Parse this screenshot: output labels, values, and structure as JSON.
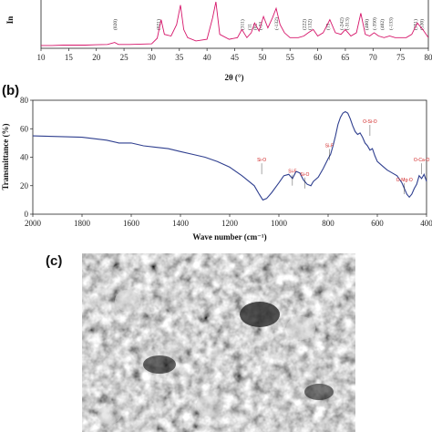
{
  "chart_data": [
    {
      "panel": "(a)",
      "type": "line",
      "xlabel": "2θ (°)",
      "ylabel": "In",
      "xlim": [
        10,
        80
      ],
      "x_ticks": [
        "10",
        "15",
        "20",
        "25",
        "30",
        "35",
        "40",
        "45",
        "50",
        "55",
        "60",
        "65",
        "70",
        "75",
        "80"
      ],
      "color": "#d6156a",
      "series": [
        {
          "x": [
            10,
            12,
            14,
            16,
            18,
            20,
            22,
            23.3,
            24,
            26,
            28,
            30,
            31,
            31.7,
            32.3,
            33.5,
            34.5,
            35.2,
            35.8,
            36.5,
            38,
            40,
            41,
            41.6,
            42.3,
            44,
            45.5,
            46.3,
            47.2,
            48,
            48.6,
            49.4,
            50.2,
            51,
            51.8,
            52.5,
            53.2,
            54,
            55,
            56.5,
            57.5,
            58.3,
            59.2,
            60,
            61,
            62.2,
            63.2,
            64.2,
            65,
            66,
            67,
            67.8,
            68.6,
            69.4,
            70.2,
            71,
            72,
            73,
            74,
            75,
            76,
            77,
            78,
            79,
            80
          ],
          "y": [
            0.06,
            0.06,
            0.07,
            0.07,
            0.07,
            0.08,
            0.09,
            0.15,
            0.09,
            0.09,
            0.1,
            0.11,
            0.28,
            0.85,
            0.4,
            0.35,
            0.7,
            1.3,
            0.55,
            0.3,
            0.2,
            0.25,
            0.9,
            1.4,
            0.4,
            0.25,
            0.3,
            0.55,
            0.3,
            0.45,
            0.75,
            0.5,
            0.95,
            0.6,
            0.9,
            1.2,
            0.7,
            0.45,
            0.3,
            0.3,
            0.35,
            0.45,
            0.55,
            0.35,
            0.45,
            0.85,
            0.45,
            0.4,
            0.55,
            0.35,
            0.45,
            1.05,
            0.4,
            0.35,
            0.45,
            0.35,
            0.3,
            0.35,
            0.3,
            0.3,
            0.3,
            0.4,
            0.75,
            0.55,
            0.3
          ]
        }
      ],
      "peak_labels": [
        {
          "x": 23.3,
          "label": "(020)"
        },
        {
          "x": 31.2,
          "label": "(021)"
        },
        {
          "x": 46.3,
          "label": "(311)"
        },
        {
          "x": 47.6,
          "label": "(11"
        },
        {
          "x": 48.6,
          "label": "(02"
        },
        {
          "x": 49.6,
          "label": "(-33"
        },
        {
          "x": 52.5,
          "label": "(-132)"
        },
        {
          "x": 57.5,
          "label": "(222)"
        },
        {
          "x": 58.5,
          "label": "(132)"
        },
        {
          "x": 61.8,
          "label": "(15"
        },
        {
          "x": 64.3,
          "label": "(-242)"
        },
        {
          "x": 65.3,
          "label": "(-313)"
        },
        {
          "x": 68.8,
          "label": "(400)"
        },
        {
          "x": 70.2,
          "label": "(-350)"
        },
        {
          "x": 71.6,
          "label": "(402)"
        },
        {
          "x": 73.2,
          "label": "(-133)"
        },
        {
          "x": 77.6,
          "label": "(351)"
        },
        {
          "x": 78.8,
          "label": "(530)"
        }
      ]
    },
    {
      "panel": "(b)",
      "type": "line",
      "xlabel": "Wave number (cm⁻¹)",
      "ylabel": "Transmittance (%)",
      "xlim": [
        2000,
        400
      ],
      "ylim": [
        0,
        80
      ],
      "x_ticks": [
        "2000",
        "1800",
        "1600",
        "1400",
        "1200",
        "1000",
        "800",
        "600",
        "400"
      ],
      "y_ticks": [
        "0",
        "20",
        "40",
        "60",
        "80"
      ],
      "color": "#2f3f8f",
      "series": [
        {
          "x": [
            2000,
            1900,
            1800,
            1700,
            1650,
            1600,
            1550,
            1500,
            1450,
            1400,
            1350,
            1300,
            1250,
            1200,
            1150,
            1100,
            1080,
            1065,
            1050,
            1030,
            1000,
            980,
            960,
            945,
            930,
            915,
            900,
            885,
            870,
            860,
            840,
            820,
            800,
            790,
            780,
            770,
            760,
            750,
            740,
            730,
            720,
            710,
            700,
            690,
            680,
            670,
            660,
            650,
            640,
            630,
            620,
            610,
            600,
            580,
            560,
            540,
            520,
            500,
            480,
            470,
            460,
            450,
            440,
            430,
            420,
            410,
            400
          ],
          "y": [
            55,
            54.5,
            54,
            52,
            50,
            50,
            48,
            47,
            46,
            44,
            42,
            40,
            37,
            33,
            27,
            20,
            14,
            10,
            11,
            15,
            22,
            27,
            28,
            25,
            30,
            29,
            24,
            21,
            20,
            23,
            26,
            32,
            39,
            42,
            48,
            55,
            63,
            68,
            71,
            72,
            71,
            67,
            62,
            58,
            56,
            57,
            54,
            50,
            48,
            45,
            46,
            41,
            37,
            34,
            31,
            29,
            27,
            22,
            14,
            12,
            14,
            18,
            21,
            27,
            25,
            28,
            23
          ]
        }
      ],
      "annotations": [
        {
          "x": 1070,
          "y": 37,
          "label": "Si-O"
        },
        {
          "x": 945,
          "y": 29,
          "label": "Si-F"
        },
        {
          "x": 895,
          "y": 27,
          "label": "Si-O"
        },
        {
          "x": 795,
          "y": 47,
          "label": "Si-F"
        },
        {
          "x": 630,
          "y": 64,
          "label": "O-Si-O"
        },
        {
          "x": 490,
          "y": 23,
          "label": "O-Mg-O"
        },
        {
          "x": 420,
          "y": 37,
          "label": "O-Ca-O"
        }
      ]
    }
  ],
  "panel_c": {
    "label": "(c)"
  }
}
